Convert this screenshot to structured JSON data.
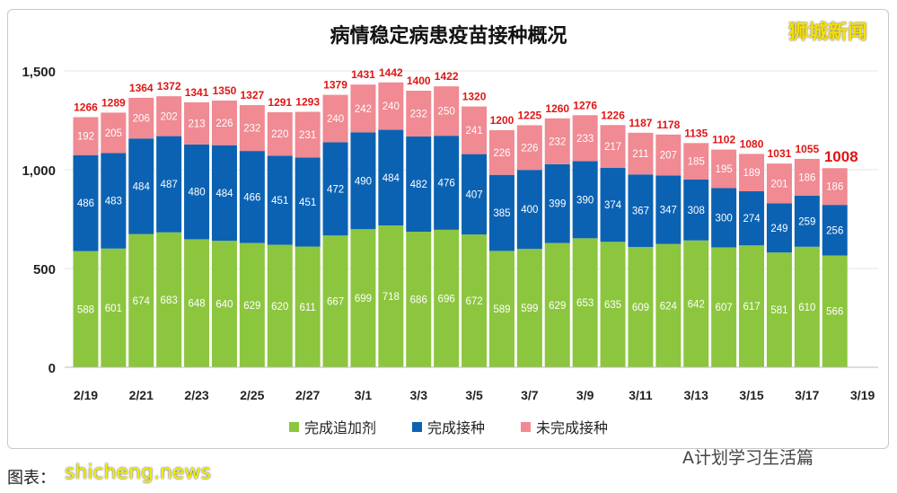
{
  "header": {
    "title": "病情稳定病患疫苗接种概况",
    "brand": "狮城新闻"
  },
  "footer": {
    "wechat": "A计划学习生活篇",
    "caption": "图表：",
    "watermark": "shicheng.news"
  },
  "chart_data": {
    "type": "bar",
    "stacked": true,
    "title": "病情稳定病患疫苗接种概况",
    "categories": [
      "2/19",
      "2/20",
      "2/21",
      "2/22",
      "2/23",
      "2/24",
      "2/25",
      "2/26",
      "2/27",
      "2/28",
      "3/1",
      "3/2",
      "3/3",
      "3/4",
      "3/5",
      "3/6",
      "3/7",
      "3/8",
      "3/9",
      "3/10",
      "3/11",
      "3/12",
      "3/13",
      "3/14",
      "3/15",
      "3/16",
      "3/17",
      "3/18"
    ],
    "x_tick_labels": [
      "2/19",
      "2/21",
      "2/23",
      "2/25",
      "2/27",
      "3/1",
      "3/3",
      "3/5",
      "3/7",
      "3/9",
      "3/11",
      "3/13",
      "3/15",
      "3/17",
      "3/19"
    ],
    "series": [
      {
        "name": "完成追加剂",
        "color": "#8cc63f",
        "values": [
          588,
          601,
          674,
          683,
          648,
          640,
          629,
          620,
          611,
          667,
          699,
          718,
          686,
          696,
          672,
          589,
          599,
          629,
          653,
          635,
          609,
          624,
          642,
          607,
          617,
          581,
          610,
          566
        ]
      },
      {
        "name": "完成接种",
        "color": "#0b62b3",
        "values": [
          486,
          483,
          484,
          487,
          480,
          484,
          466,
          451,
          451,
          472,
          490,
          484,
          482,
          476,
          407,
          385,
          400,
          399,
          390,
          374,
          367,
          347,
          308,
          300,
          274,
          249,
          259,
          256
        ]
      },
      {
        "name": "未完成接种",
        "color": "#f08a93",
        "values": [
          192,
          205,
          206,
          202,
          213,
          226,
          232,
          220,
          231,
          240,
          242,
          240,
          232,
          250,
          241,
          226,
          226,
          232,
          233,
          217,
          211,
          207,
          185,
          195,
          189,
          201,
          186,
          186
        ]
      }
    ],
    "totals": [
      1266,
      1289,
      1364,
      1372,
      1341,
      1350,
      1327,
      1291,
      1293,
      1379,
      1431,
      1442,
      1400,
      1422,
      1320,
      1200,
      1225,
      1260,
      1276,
      1226,
      1187,
      1178,
      1135,
      1102,
      1080,
      1031,
      1055,
      1008
    ],
    "total_color": "#e01515",
    "y_ticks": [
      "0",
      "500",
      "1,000",
      "1,500"
    ],
    "ylim": [
      0,
      1500
    ],
    "grid": true,
    "legend": "bottom"
  }
}
